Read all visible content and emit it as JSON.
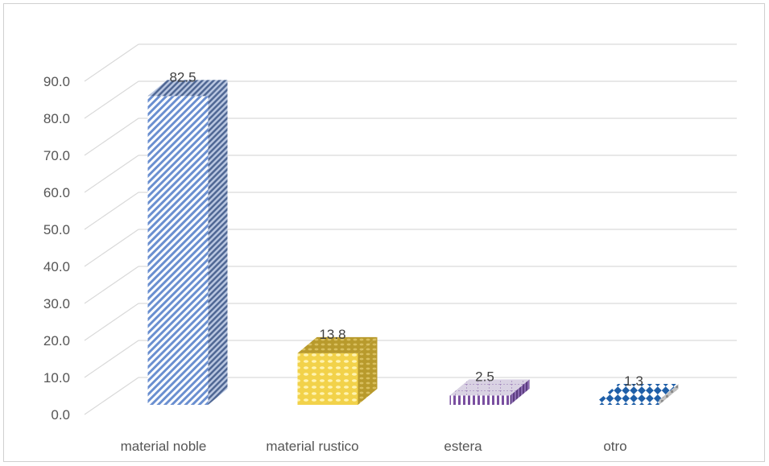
{
  "chart_data": {
    "type": "bar",
    "categories": [
      "material noble",
      "material rustico",
      "estera",
      "otro"
    ],
    "values": [
      82.5,
      13.8,
      2.5,
      1.3
    ],
    "data_labels": [
      "82.5",
      "13.8",
      "2.5",
      "1.3"
    ],
    "ylim": [
      0,
      90
    ],
    "yticks": [
      "0.0",
      "10.0",
      "20.0",
      "30.0",
      "40.0",
      "50.0",
      "60.0",
      "70.0",
      "80.0",
      "90.0"
    ],
    "grid": true,
    "style": "3d-column",
    "title": "",
    "xlabel": "",
    "ylabel": "",
    "colors": [
      "#4a72c4",
      "#e8c22e",
      "#7a4fa0",
      "#1f5fa8"
    ]
  }
}
